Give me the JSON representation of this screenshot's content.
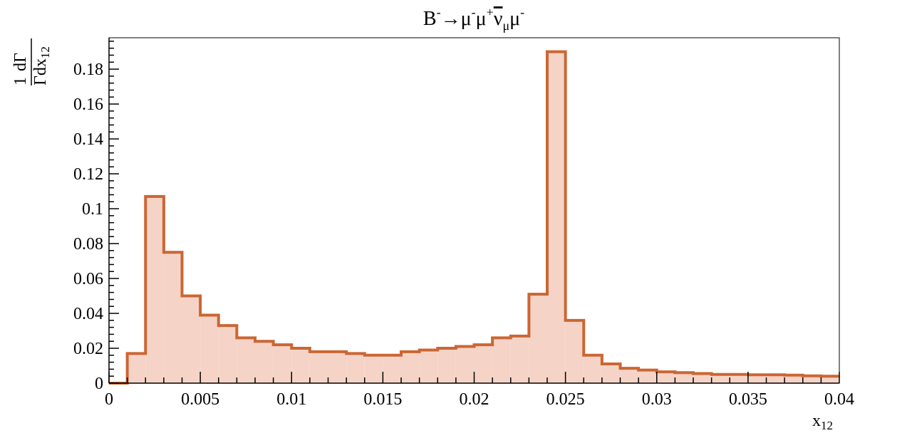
{
  "chart_data": {
    "type": "bar",
    "title": {
      "base": "B",
      "sup1": "-",
      "arrow": "→μ",
      "sup2": "-",
      "mid1": "μ",
      "sup3": "+",
      "nu": "ν",
      "sub_mu": "μ",
      "mid2": "μ",
      "sup4": "-"
    },
    "xlabel": {
      "base": "x",
      "sub": "12"
    },
    "ylabel": {
      "num_1": "1",
      "num_d": "dΓ",
      "den_gamma": "Γ",
      "den_dx": "dx",
      "den_sub": "12"
    },
    "xlim": [
      0,
      0.04
    ],
    "ylim": [
      0,
      0.198
    ],
    "bin_width": 0.001,
    "x_ticks": [
      {
        "value": 0,
        "label": "0"
      },
      {
        "value": 0.005,
        "label": "0.005"
      },
      {
        "value": 0.01,
        "label": "0.01"
      },
      {
        "value": 0.015,
        "label": "0.015"
      },
      {
        "value": 0.02,
        "label": "0.02"
      },
      {
        "value": 0.025,
        "label": "0.025"
      },
      {
        "value": 0.03,
        "label": "0.03"
      },
      {
        "value": 0.035,
        "label": "0.035"
      },
      {
        "value": 0.04,
        "label": "0.04"
      }
    ],
    "y_ticks": [
      {
        "value": 0,
        "label": "0"
      },
      {
        "value": 0.02,
        "label": "0.02"
      },
      {
        "value": 0.04,
        "label": "0.04"
      },
      {
        "value": 0.06,
        "label": "0.06"
      },
      {
        "value": 0.08,
        "label": "0.08"
      },
      {
        "value": 0.1,
        "label": "0.1"
      },
      {
        "value": 0.12,
        "label": "0.12"
      },
      {
        "value": 0.14,
        "label": "0.14"
      },
      {
        "value": 0.16,
        "label": "0.16"
      },
      {
        "value": 0.18,
        "label": "0.18"
      }
    ],
    "bin_edges_start": 0,
    "values": [
      0,
      0.017,
      0.107,
      0.075,
      0.05,
      0.039,
      0.033,
      0.026,
      0.024,
      0.022,
      0.02,
      0.018,
      0.018,
      0.017,
      0.016,
      0.016,
      0.018,
      0.019,
      0.02,
      0.021,
      0.022,
      0.026,
      0.027,
      0.051,
      0.19,
      0.036,
      0.016,
      0.011,
      0.0085,
      0.0075,
      0.0065,
      0.006,
      0.0055,
      0.005,
      0.005,
      0.0048,
      0.0048,
      0.0046,
      0.0042,
      0.004
    ],
    "colors": {
      "fill": "#f5d4c7",
      "line": "#cc6633"
    },
    "grid": false,
    "legend": "none"
  }
}
